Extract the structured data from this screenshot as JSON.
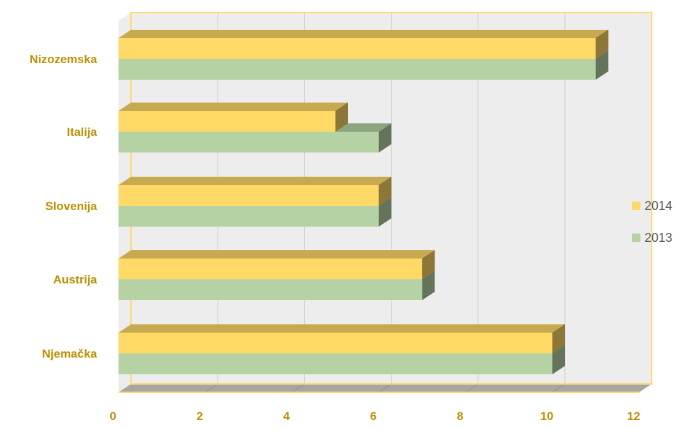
{
  "chart_data": {
    "type": "bar",
    "orientation": "horizontal",
    "style": "3d-clustered",
    "title": "",
    "xlabel": "",
    "ylabel": "",
    "categories": [
      "Njemačka",
      "Austrija",
      "Slovenija",
      "Italija",
      "Nizozemska"
    ],
    "series": [
      {
        "name": "2014",
        "values": [
          10,
          7,
          6,
          5,
          11
        ]
      },
      {
        "name": "2013",
        "values": [
          10,
          7,
          6,
          6,
          11
        ]
      }
    ],
    "xlim": [
      0,
      12
    ],
    "xticks": [
      "0",
      "2",
      "4",
      "6",
      "8",
      "10",
      "12"
    ],
    "grid": true,
    "legend_position": "right",
    "colors": {
      "series_2014": "#FFD966",
      "series_2013": "#B5D2A4",
      "label_text": "#BF8F00",
      "legend_text": "#595959",
      "plot_background": "#EDEDED",
      "gridline": "#D0D0D0",
      "floor": "#A6A6A6",
      "frame": "#FFD966"
    }
  }
}
